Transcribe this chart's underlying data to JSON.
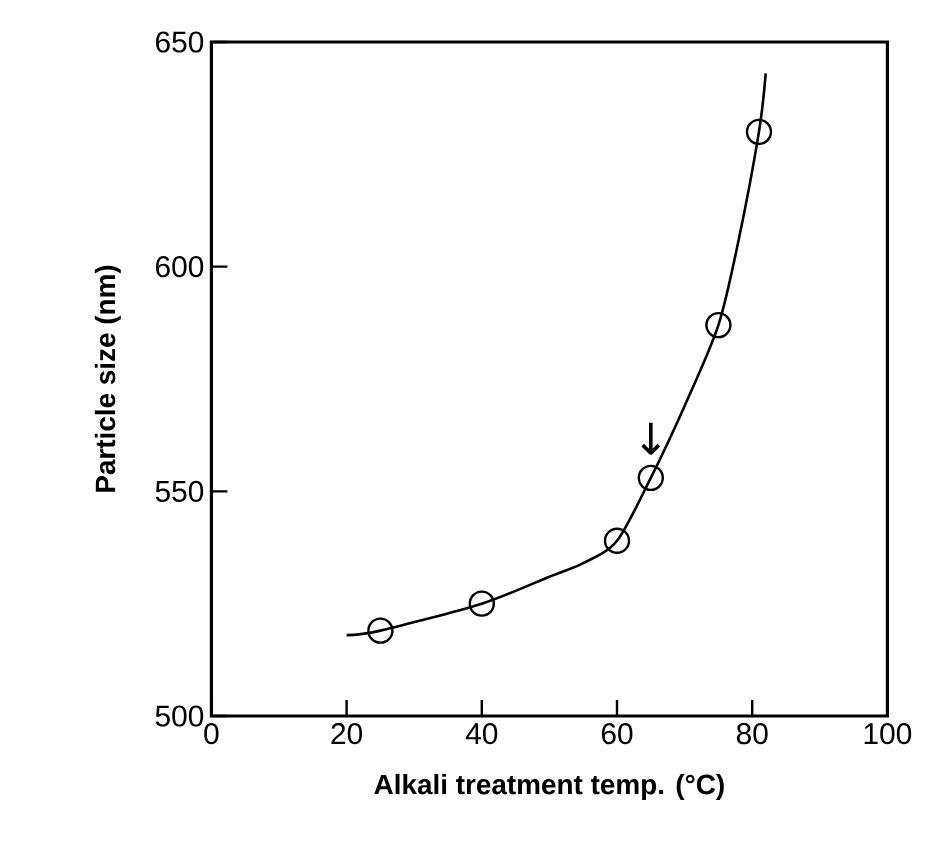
{
  "chart_data": {
    "type": "scatter",
    "xlabel": "Alkali treatment temp. (°C)",
    "ylabel": "Particle size  (nm)",
    "xlim": [
      0,
      100
    ],
    "ylim": [
      500,
      650
    ],
    "xticks": [
      0,
      20,
      40,
      60,
      80,
      100
    ],
    "yticks": [
      500,
      550,
      600,
      650
    ],
    "grid": false,
    "marker": "circle",
    "series": [
      {
        "color": "#000000",
        "x": [
          25,
          40,
          60,
          65,
          75,
          81
        ],
        "values": [
          519,
          525,
          539,
          553,
          587,
          630
        ]
      },
      {
        "type": "line",
        "color": "#000000",
        "marker": "none",
        "line_style": "solid",
        "x": [
          20,
          25,
          40,
          50,
          55,
          60,
          65,
          70,
          75,
          78,
          81,
          82
        ],
        "values": [
          518,
          519,
          525,
          531,
          534,
          539,
          553,
          569,
          587,
          606,
          630,
          643
        ]
      }
    ],
    "annotations": [
      {
        "text": "↓",
        "x": 65,
        "y": 553
      }
    ]
  }
}
